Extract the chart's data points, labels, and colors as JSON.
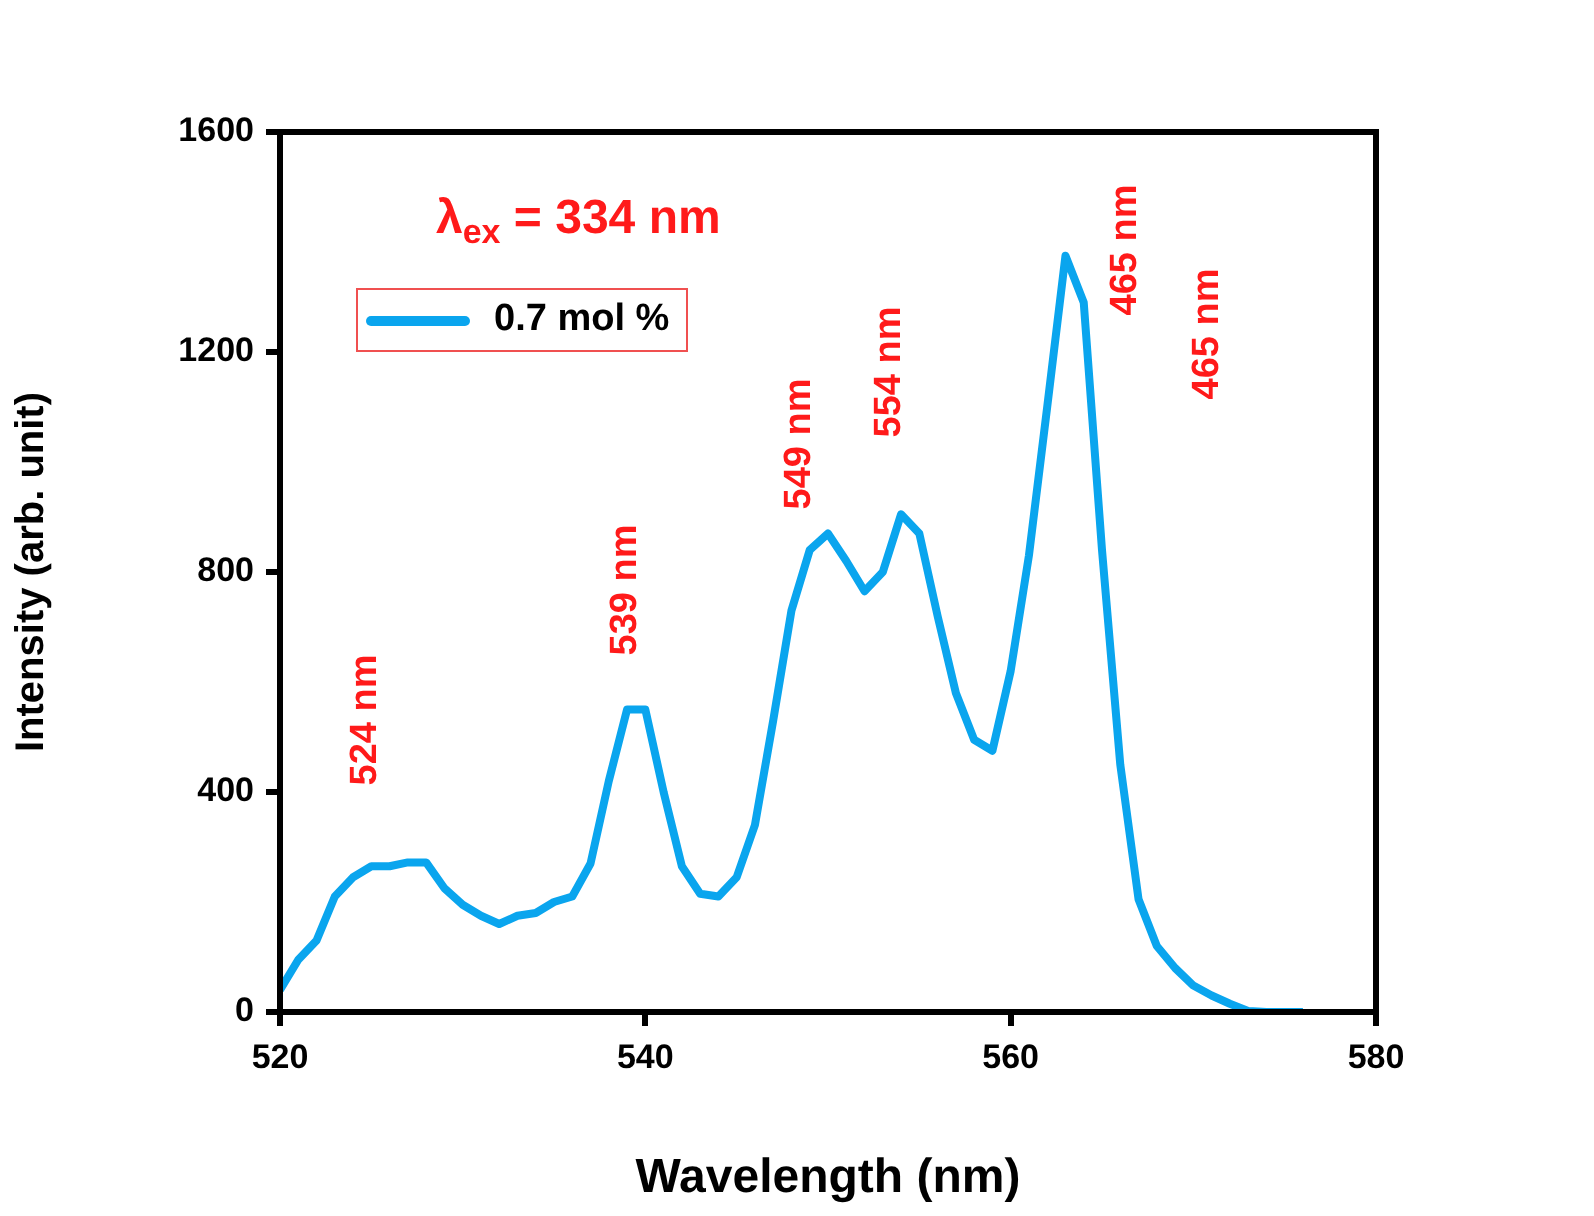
{
  "chart_data": {
    "type": "line",
    "xlabel": "Wavelength (nm)",
    "ylabel": "Intensity (arb. unit)",
    "x": [
      520,
      521,
      522,
      523,
      524,
      525,
      526,
      527,
      528,
      529,
      530,
      531,
      532,
      533,
      534,
      535,
      536,
      537,
      538,
      539,
      540,
      541,
      542,
      543,
      544,
      545,
      546,
      547,
      548,
      549,
      550,
      551,
      552,
      553,
      554,
      555,
      556,
      557,
      558,
      559,
      560,
      561,
      562,
      563,
      564,
      565,
      566,
      567,
      568,
      569,
      570,
      571,
      572,
      573,
      574,
      575,
      576
    ],
    "series": [
      {
        "name": "0.7 mol %",
        "color": "#0aa5ee",
        "values": [
          40,
          95,
          130,
          210,
          245,
          265,
          265,
          272,
          272,
          225,
          195,
          175,
          160,
          175,
          180,
          200,
          210,
          270,
          420,
          550,
          550,
          400,
          265,
          215,
          210,
          245,
          340,
          530,
          730,
          840,
          870,
          820,
          765,
          800,
          905,
          870,
          720,
          580,
          495,
          475,
          620,
          830,
          1100,
          1375,
          1290,
          840,
          450,
          205,
          120,
          80,
          48,
          30,
          15,
          2,
          0,
          0,
          0
        ]
      }
    ],
    "xlim": [
      520,
      580
    ],
    "xticks": [
      520,
      540,
      560,
      580
    ],
    "ylim": [
      0,
      1600
    ],
    "yticks": [
      0,
      400,
      800,
      1200,
      1600
    ],
    "grid": false,
    "legend": "top left",
    "marker": "none",
    "line_style": "solid",
    "annotations": [
      "λ$_{ex}$ = 334 nm",
      "524 nm",
      "539 nm",
      "549 nm",
      "554 nm",
      "465 nm",
      "465 nm"
    ]
  }
}
